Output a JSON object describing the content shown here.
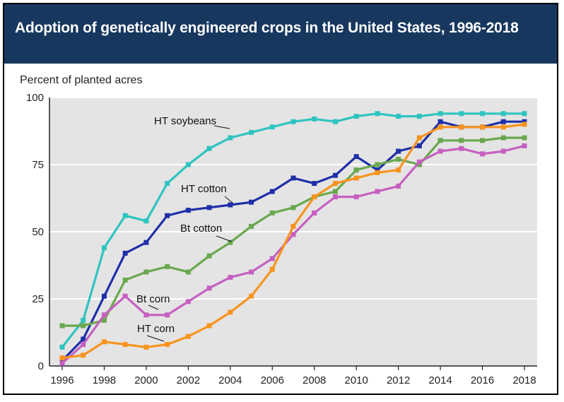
{
  "chart_data": {
    "type": "line",
    "title": "Adoption of genetically engineered crops in the United States, 1996-2018",
    "ylabel": "Percent of planted acres",
    "xlabel": "",
    "xlim": [
      1996,
      2018
    ],
    "ylim": [
      0,
      100
    ],
    "x_ticks": [
      "1996",
      "1998",
      "2000",
      "2002",
      "2004",
      "2006",
      "2008",
      "2010",
      "2012",
      "2014",
      "2016",
      "2018"
    ],
    "y_ticks": [
      "0",
      "25",
      "50",
      "75",
      "100"
    ],
    "grid": true,
    "x": [
      1996,
      1997,
      1998,
      1999,
      2000,
      2001,
      2002,
      2003,
      2004,
      2005,
      2006,
      2007,
      2008,
      2009,
      2010,
      2011,
      2012,
      2013,
      2014,
      2015,
      2016,
      2017,
      2018
    ],
    "series": [
      {
        "name": "HT soybeans",
        "color": "#2ec4c0",
        "values": [
          7,
          17,
          44,
          56,
          54,
          68,
          75,
          81,
          85,
          87,
          89,
          91,
          92,
          91,
          93,
          94,
          93,
          93,
          94,
          94,
          94,
          94,
          94
        ]
      },
      {
        "name": "HT cotton",
        "color": "#1f2fa8",
        "values": [
          2,
          10,
          26,
          42,
          46,
          56,
          58,
          59,
          60,
          61,
          65,
          70,
          68,
          71,
          78,
          73,
          80,
          82,
          91,
          89,
          89,
          91,
          91
        ]
      },
      {
        "name": "Bt cotton",
        "color": "#6aa84f",
        "values": [
          15,
          15,
          17,
          32,
          35,
          37,
          35,
          41,
          46,
          52,
          57,
          59,
          63,
          65,
          73,
          75,
          77,
          75,
          84,
          84,
          84,
          85,
          85
        ]
      },
      {
        "name": "Bt corn",
        "color": "#c560c0",
        "values": [
          1,
          8,
          19,
          26,
          19,
          19,
          24,
          29,
          33,
          35,
          40,
          49,
          57,
          63,
          63,
          65,
          67,
          76,
          80,
          81,
          79,
          80,
          82
        ]
      },
      {
        "name": "HT corn",
        "color": "#f7941d",
        "values": [
          3,
          4,
          9,
          8,
          7,
          8,
          11,
          15,
          20,
          26,
          36,
          52,
          63,
          68,
          70,
          72,
          73,
          85,
          89,
          89,
          89,
          89,
          90
        ]
      }
    ],
    "labels": [
      {
        "series": "HT soybeans",
        "text": "HT soybeans"
      },
      {
        "series": "HT cotton",
        "text": "HT cotton"
      },
      {
        "series": "Bt cotton",
        "text": "Bt cotton"
      },
      {
        "series": "Bt corn",
        "text": "Bt corn"
      },
      {
        "series": "HT corn",
        "text": "HT corn"
      }
    ]
  }
}
